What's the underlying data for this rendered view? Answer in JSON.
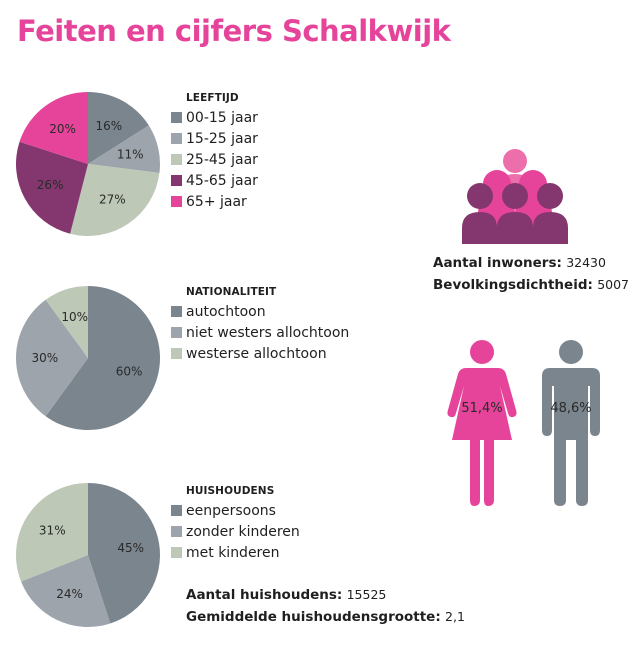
{
  "title": "Feiten en cijfers Schalkwijk",
  "colors": {
    "brand_pink": "#e5449a",
    "light_pink": "#ec6fab",
    "plum": "#83376e",
    "dark_gray": "#7a858e",
    "mid_gray": "#9ea4ab",
    "sage": "#bdc8b6"
  },
  "chart_data": [
    {
      "type": "pie",
      "title": "LEEFTIJD",
      "categories": [
        "00-15 jaar",
        "15-25 jaar",
        "25-45 jaar",
        "45-65 jaar",
        "65+ jaar"
      ],
      "values": [
        16,
        11,
        27,
        26,
        20
      ],
      "labels": [
        "16%",
        "11%",
        "27%",
        "26%",
        "20%"
      ],
      "colors": [
        "#7a858e",
        "#9ea4ab",
        "#bdc8b6",
        "#83376e",
        "#e5449a"
      ],
      "legend": "right"
    },
    {
      "type": "pie",
      "title": "NATIONALITEIT",
      "categories": [
        "autochtoon",
        "niet westers allochtoon",
        "westerse allochtoon"
      ],
      "values": [
        60,
        30,
        10
      ],
      "labels": [
        "60%",
        "30%",
        "10%"
      ],
      "colors": [
        "#7a858e",
        "#9ea4ab",
        "#bdc8b6"
      ],
      "legend": "right"
    },
    {
      "type": "pie",
      "title": "HUISHOUDENS",
      "categories": [
        "eenpersoons",
        "zonder kinderen",
        "met kinderen"
      ],
      "values": [
        45,
        24,
        31
      ],
      "labels": [
        "45%",
        "24%",
        "31%"
      ],
      "colors": [
        "#7a858e",
        "#9ea4ab",
        "#bdc8b6"
      ],
      "legend": "right"
    }
  ],
  "households": {
    "count_label": "Aantal huishoudens:",
    "count_value": "15525",
    "size_label": "Gemiddelde huishoudensgrootte:",
    "size_value": "2,1"
  },
  "population": {
    "inhabitants_label": "Aantal inwoners:",
    "inhabitants_value": "32430",
    "density_label": "Bevolkingsdichtheid:",
    "density_value": "5007"
  },
  "gender": {
    "female_label": "51,4%",
    "female_value": 51.4,
    "male_label": "48,6%",
    "male_value": 48.6
  }
}
